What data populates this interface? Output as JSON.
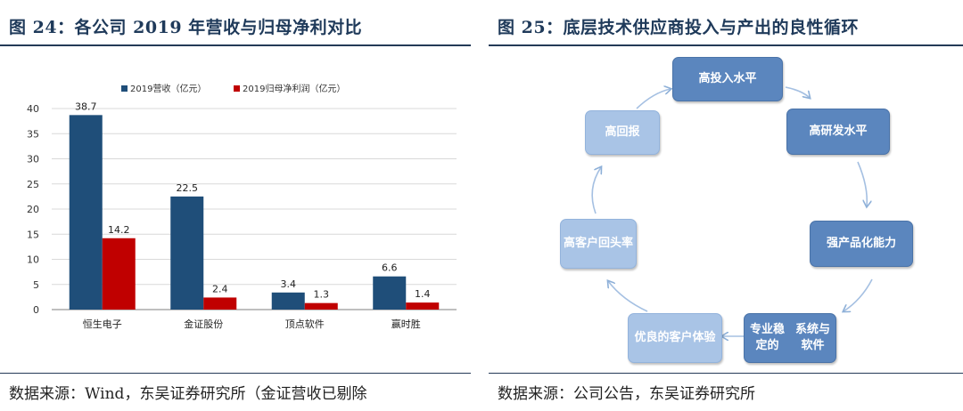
{
  "left_panel": {
    "title": "图 24：各公司 2019 年营收与归母净利对比",
    "source": "数据来源：Wind，东吴证券研究所（金证营收已剔除"
  },
  "right_panel": {
    "title": "图 25：底层技术供应商投入与产出的良性循环",
    "source": "数据来源：公司公告，东吴证券研究所",
    "cycle_nodes": [
      {
        "id": "high-investment",
        "lines": [
          "高投入水平"
        ]
      },
      {
        "id": "high-rd",
        "lines": [
          "高研发水平"
        ]
      },
      {
        "id": "strong-product",
        "lines": [
          "强产品化能力"
        ]
      },
      {
        "id": "stable-system",
        "lines": [
          "专业稳定的",
          "系统与软件"
        ]
      },
      {
        "id": "good-experience",
        "lines": [
          "优良的客户",
          "体验"
        ]
      },
      {
        "id": "high-repurchase",
        "lines": [
          "高客户回",
          "头率"
        ]
      },
      {
        "id": "high-return",
        "lines": [
          "高回报"
        ]
      }
    ]
  },
  "chart_data": {
    "type": "bar",
    "categories": [
      "恒生电子",
      "金证股份",
      "顶点软件",
      "赢时胜"
    ],
    "series": [
      {
        "name": "2019营收（亿元）",
        "values": [
          38.7,
          22.5,
          3.4,
          6.6
        ],
        "color": "#1f4e79"
      },
      {
        "name": "2019归母净利润（亿元）",
        "values": [
          14.2,
          2.4,
          1.3,
          1.4
        ],
        "color": "#c00000"
      }
    ],
    "ylim": [
      0,
      40
    ],
    "yticks": [
      0,
      5,
      10,
      15,
      20,
      25,
      30,
      35,
      40
    ],
    "legend": "top",
    "grid": true,
    "data_labels": true
  }
}
